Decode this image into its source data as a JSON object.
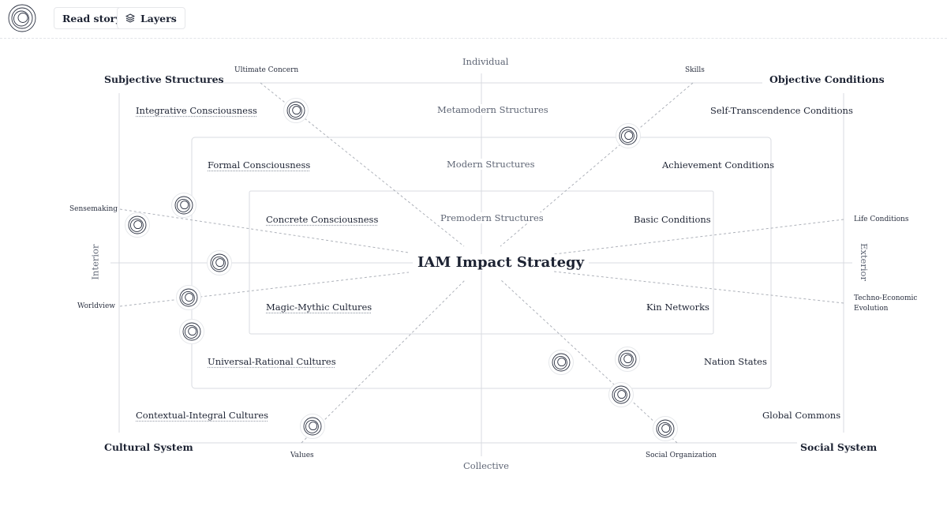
{
  "toolbar": {
    "read_story_label": "Read story",
    "layers_label": "Layers"
  },
  "diagram": {
    "title": "IAM Impact Strategy",
    "axes": {
      "top": "Individual",
      "bottom": "Collective",
      "left": "Interior",
      "right": "Exterior"
    },
    "corners": {
      "top_left": "Subjective Structures",
      "top_right": "Objective Conditions",
      "bottom_left": "Cultural System",
      "bottom_right": "Social System"
    },
    "structures": {
      "outer": "Metamodern Structures",
      "middle": "Modern Structures",
      "inner": "Premodern Structures"
    },
    "quadrants": {
      "upper_left": [
        "Integrative Consciousness",
        "Formal Consciousness",
        "Concrete Consciousness"
      ],
      "upper_right": [
        "Self-Transcendence Conditions",
        "Achievement Conditions",
        "Basic Conditions"
      ],
      "lower_left": [
        "Magic-Mythic Cultures",
        "Universal-Rational Cultures",
        "Contextual-Integral Cultures"
      ],
      "lower_right": [
        "Kin Networks",
        "Nation States",
        "Global Commons"
      ]
    },
    "spokes": {
      "ultimate_concern": "Ultimate Concern",
      "skills": "Skills",
      "sensemaking": "Sensemaking",
      "life_conditions": "Life Conditions",
      "worldview": "Worldview",
      "techno_economic": "Techno-Economic",
      "evolution": "Evolution",
      "values": "Values",
      "social_organization": "Social Organization"
    },
    "node_count": 13
  }
}
